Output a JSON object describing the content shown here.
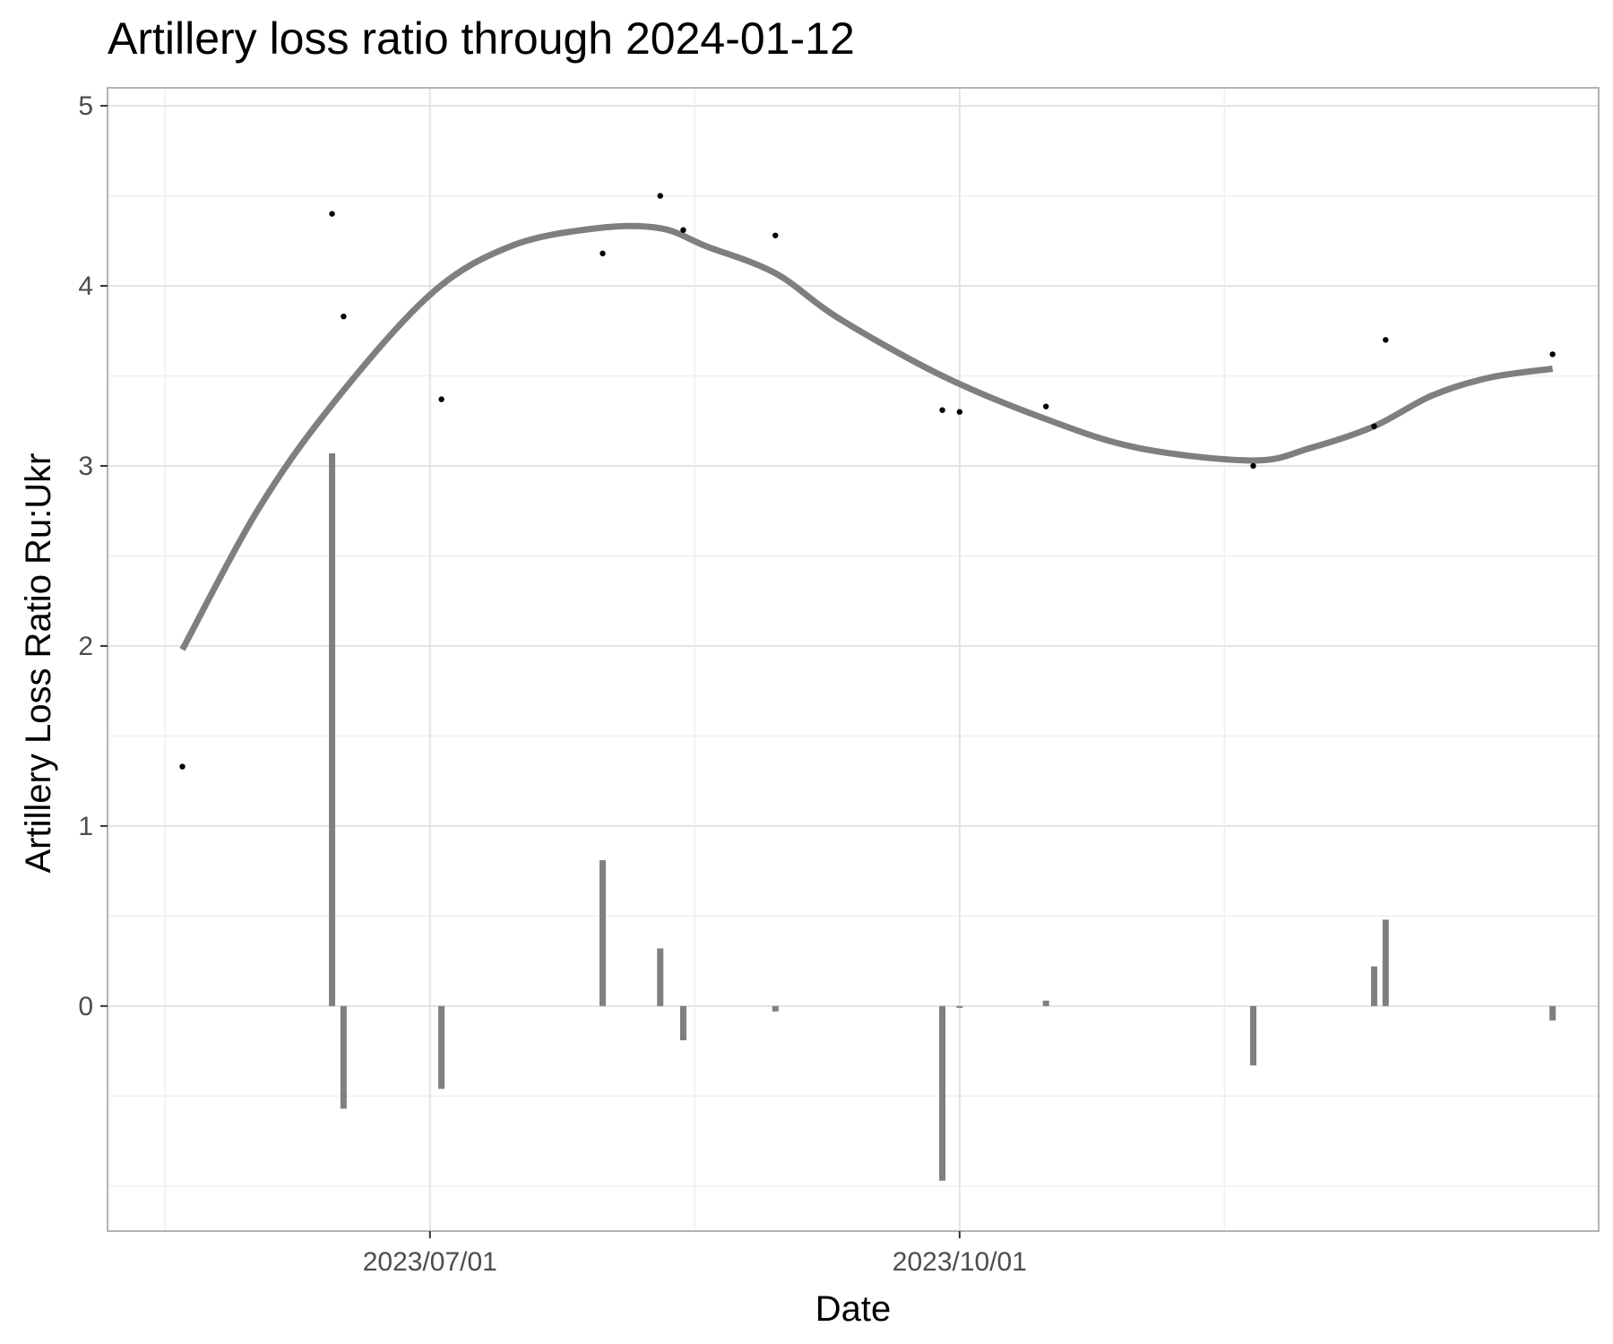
{
  "chart_data": {
    "type": "line",
    "title": "Artillery loss ratio through 2024-01-12",
    "xlabel": "Date",
    "ylabel": "Artillery Loss Ratio Ru:Ukr",
    "x_range": [
      "2023-05-06",
      "2024-01-20"
    ],
    "ylim": [
      -1.25,
      5.1
    ],
    "y_ticks": [
      0,
      1,
      2,
      3,
      4,
      5
    ],
    "x_ticks": [
      "2023/07/01",
      "2023/10/01"
    ],
    "x_tick_dates": [
      "2023-07-01",
      "2023-10-01"
    ],
    "grid": true,
    "colors": {
      "trend": "#7f7f7f",
      "change": "#7f7f7f",
      "points": "#000000",
      "grid": "#e3e3e3",
      "panel_border": "#b3b3b3"
    },
    "series": [
      {
        "type": "scatter",
        "x": [
          "2023-05-19",
          "2023-06-14",
          "2023-06-16",
          "2023-07-03",
          "2023-07-31",
          "2023-08-10",
          "2023-08-14",
          "2023-08-30",
          "2023-09-28",
          "2023-10-01",
          "2023-10-16",
          "2023-11-21",
          "2023-12-12",
          "2023-12-14",
          "2024-01-12"
        ],
        "y": [
          1.33,
          4.4,
          3.83,
          3.37,
          4.18,
          4.5,
          4.31,
          4.28,
          3.31,
          3.3,
          3.33,
          3.0,
          3.22,
          3.7,
          3.62
        ]
      },
      {
        "type": "line",
        "x": [
          "2023-05-19",
          "2023-06-01",
          "2023-06-14",
          "2023-07-01",
          "2023-07-15",
          "2023-07-30",
          "2023-08-10",
          "2023-08-18",
          "2023-08-30",
          "2023-09-10",
          "2023-09-28",
          "2023-10-16",
          "2023-11-01",
          "2023-11-21",
          "2023-12-01",
          "2023-12-12",
          "2023-12-22",
          "2024-01-01",
          "2024-01-12"
        ],
        "y": [
          1.98,
          2.75,
          3.34,
          3.95,
          4.22,
          4.32,
          4.32,
          4.22,
          4.07,
          3.82,
          3.5,
          3.26,
          3.1,
          3.03,
          3.1,
          3.22,
          3.39,
          3.49,
          3.54
        ]
      },
      {
        "type": "bar",
        "x": [
          "2023-06-14",
          "2023-06-16",
          "2023-07-03",
          "2023-07-31",
          "2023-08-10",
          "2023-08-14",
          "2023-08-30",
          "2023-09-28",
          "2023-10-01",
          "2023-10-16",
          "2023-11-21",
          "2023-12-12",
          "2023-12-14",
          "2024-01-12"
        ],
        "y": [
          3.07,
          -0.57,
          -0.46,
          0.81,
          0.32,
          -0.19,
          -0.03,
          -0.97,
          -0.01,
          0.03,
          -0.33,
          0.22,
          0.48,
          -0.08
        ]
      }
    ]
  }
}
